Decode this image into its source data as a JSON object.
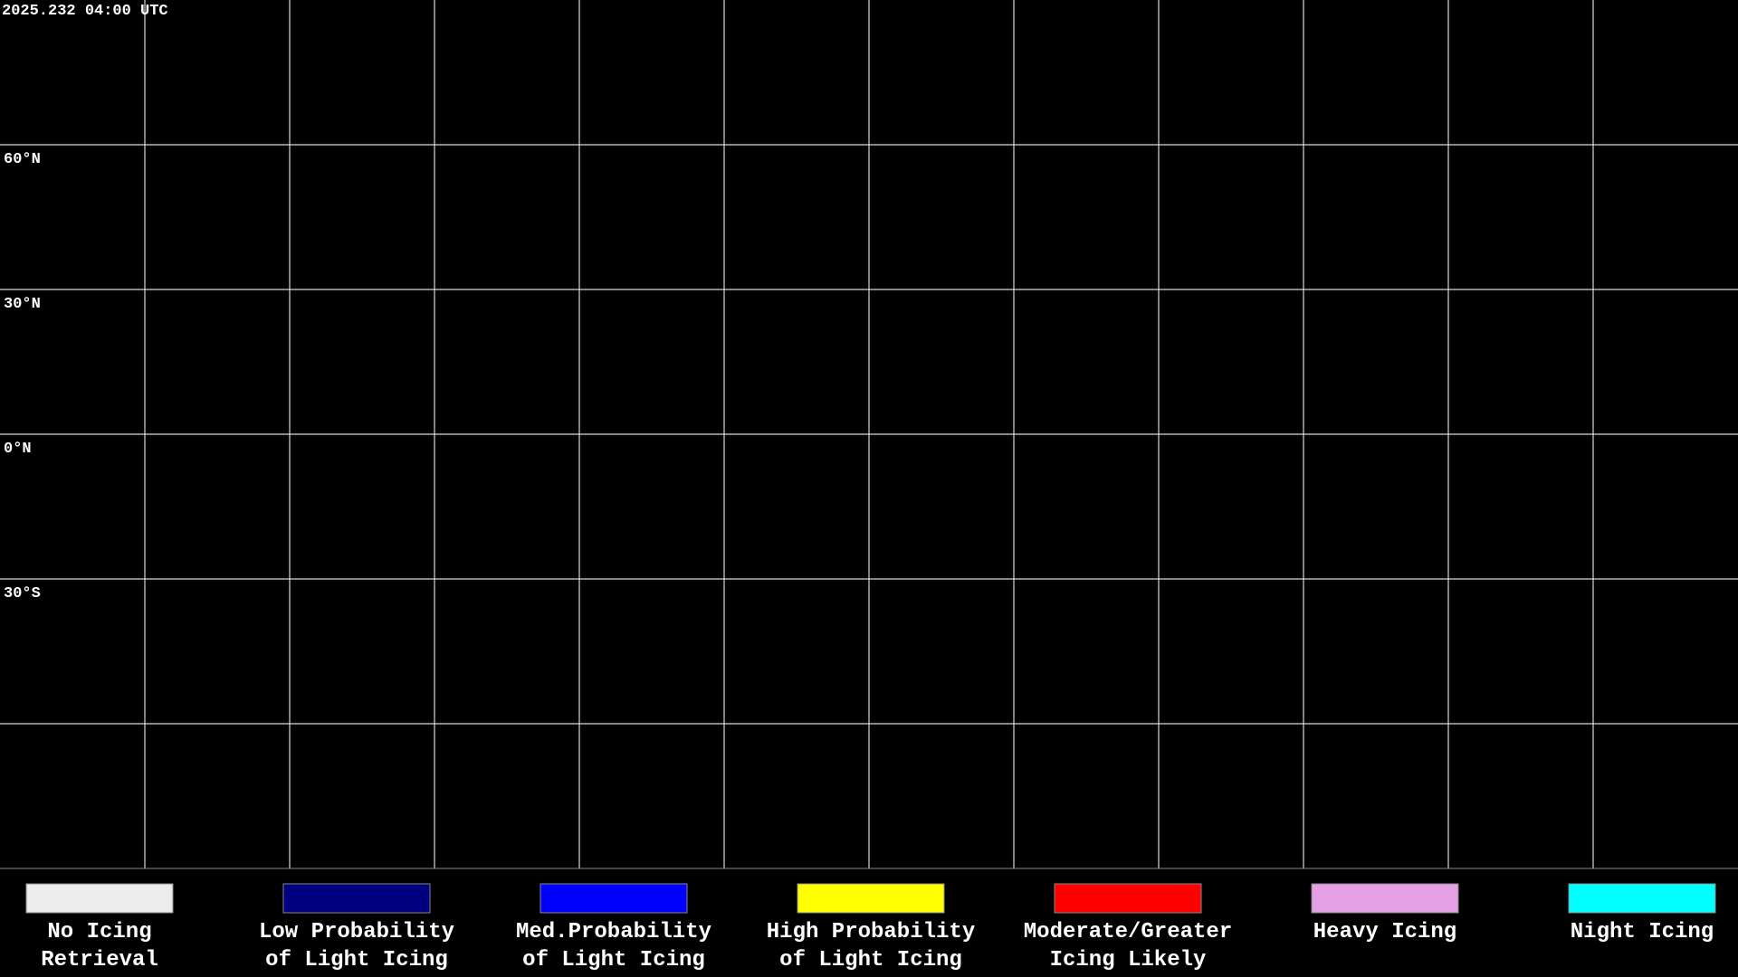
{
  "header": {
    "timestamp": "2025.232 04:00 UTC"
  },
  "map": {
    "latitude_labels": [
      "60°N",
      "30°N",
      "0°N",
      "30°S"
    ]
  },
  "legend": {
    "items": [
      {
        "lines": [
          "No Icing",
          "Retrieval"
        ],
        "color": "#ececec"
      },
      {
        "lines": [
          "Low Probability",
          "of Light Icing"
        ],
        "color": "#000080"
      },
      {
        "lines": [
          "Med.Probability",
          "of Light Icing"
        ],
        "color": "#0000ff"
      },
      {
        "lines": [
          "High Probability",
          "of Light Icing"
        ],
        "color": "#ffff00"
      },
      {
        "lines": [
          "Moderate/Greater",
          "Icing Likely"
        ],
        "color": "#ff0000"
      },
      {
        "lines": [
          "Heavy Icing"
        ],
        "color": "#e6a0e6"
      },
      {
        "lines": [
          "Night Icing"
        ],
        "color": "#00ffff"
      }
    ]
  }
}
